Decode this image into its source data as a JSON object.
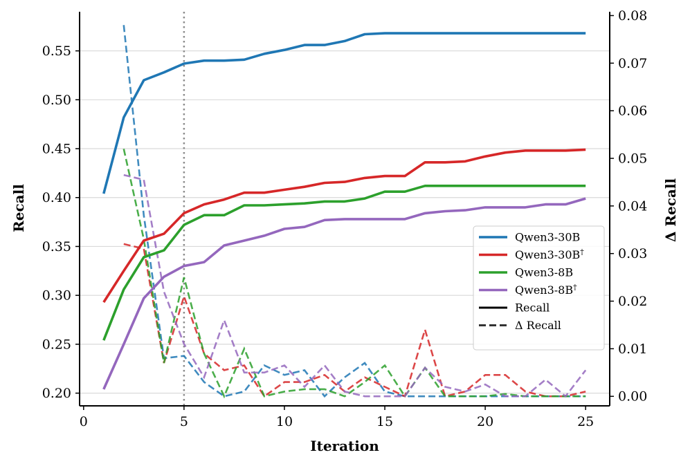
{
  "chart_data": {
    "type": "line",
    "x": [
      1,
      2,
      3,
      4,
      5,
      6,
      7,
      8,
      9,
      10,
      11,
      12,
      13,
      14,
      15,
      16,
      17,
      18,
      19,
      20,
      21,
      22,
      23,
      24,
      25
    ],
    "xlabel": "Iteration",
    "ylabel": "Recall",
    "y2label": "Δ Recall",
    "xlim": [
      -0.2,
      26.2
    ],
    "ylim": [
      0.187,
      0.59
    ],
    "y2lim": [
      -0.002,
      0.0808
    ],
    "xticks": [
      0,
      5,
      10,
      15,
      20,
      25
    ],
    "yticks": [
      0.2,
      0.25,
      0.3,
      0.35,
      0.4,
      0.45,
      0.5,
      0.55
    ],
    "ytick_labels": [
      "0.20",
      "0.25",
      "0.30",
      "0.35",
      "0.40",
      "0.45",
      "0.50",
      "0.55"
    ],
    "y2ticks": [
      0.0,
      0.01,
      0.02,
      0.03,
      0.04,
      0.05,
      0.06,
      0.07,
      0.08
    ],
    "y2tick_labels": [
      "0.00",
      "0.01",
      "0.02",
      "0.03",
      "0.04",
      "0.05",
      "0.06",
      "0.07",
      "0.08"
    ],
    "vline_x": 5,
    "grid": "horizontal",
    "legend_position": "center-right",
    "series": [
      {
        "name": "Qwen3-30B",
        "color": "#1f77b4",
        "recall": [
          0.404,
          0.482,
          0.52,
          0.528,
          0.537,
          0.54,
          0.54,
          0.541,
          0.547,
          0.551,
          0.556,
          0.556,
          0.56,
          0.567,
          0.568,
          0.568,
          0.568,
          0.568,
          0.568,
          0.568,
          0.568,
          0.568,
          0.568,
          0.568,
          0.568
        ],
        "delta": [
          null,
          0.078,
          0.038,
          0.008,
          0.0085,
          0.003,
          0.0,
          0.001,
          0.0065,
          0.0045,
          0.0055,
          0.0,
          0.004,
          0.007,
          0.001,
          0.0,
          0.0,
          0.0,
          0.0,
          0.0,
          0.0,
          0.0,
          0.0,
          0.0,
          0.0
        ]
      },
      {
        "name": "Qwen3-30B",
        "sup": "†",
        "color": "#d62728",
        "recall": [
          0.293,
          0.325,
          0.356,
          0.363,
          0.384,
          0.393,
          0.398,
          0.405,
          0.405,
          0.408,
          0.411,
          0.415,
          0.416,
          0.42,
          0.422,
          0.422,
          0.436,
          0.436,
          0.437,
          0.442,
          0.446,
          0.448,
          0.448,
          0.448,
          0.449
        ],
        "delta": [
          null,
          0.032,
          0.031,
          0.007,
          0.021,
          0.009,
          0.0055,
          0.0065,
          0.0,
          0.003,
          0.003,
          0.0045,
          0.001,
          0.004,
          0.002,
          0.0,
          0.014,
          0.0,
          0.001,
          0.0045,
          0.0045,
          0.001,
          0.0,
          0.0,
          0.001
        ]
      },
      {
        "name": "Qwen3-8B",
        "color": "#2ca02c",
        "recall": [
          0.254,
          0.306,
          0.339,
          0.346,
          0.372,
          0.382,
          0.382,
          0.392,
          0.392,
          0.393,
          0.394,
          0.396,
          0.396,
          0.399,
          0.406,
          0.406,
          0.412,
          0.412,
          0.412,
          0.412,
          0.412,
          0.412,
          0.412,
          0.412,
          0.412
        ],
        "delta": [
          null,
          0.052,
          0.033,
          0.007,
          0.025,
          0.009,
          0.0,
          0.01,
          0.0,
          0.001,
          0.0015,
          0.0015,
          0.0,
          0.003,
          0.0065,
          0.0,
          0.006,
          0.0,
          0.0,
          0.0,
          0.0005,
          0.0,
          0.0,
          0.0,
          0.0
        ]
      },
      {
        "name": "Qwen3-8B",
        "sup": "†",
        "color": "#9467bd",
        "recall": [
          0.204,
          0.25,
          0.297,
          0.319,
          0.33,
          0.334,
          0.351,
          0.356,
          0.361,
          0.368,
          0.37,
          0.377,
          0.378,
          0.378,
          0.378,
          0.378,
          0.384,
          0.386,
          0.387,
          0.39,
          0.39,
          0.39,
          0.393,
          0.393,
          0.399
        ],
        "delta": [
          null,
          0.0465,
          0.0455,
          0.022,
          0.011,
          0.004,
          0.016,
          0.005,
          0.005,
          0.0065,
          0.002,
          0.0065,
          0.001,
          0.0,
          0.0,
          0.0,
          0.006,
          0.002,
          0.001,
          0.0025,
          0.0,
          0.0,
          0.0035,
          0.0,
          0.0055
        ]
      }
    ],
    "legend_style_entries": [
      {
        "label": "Recall",
        "style": "solid"
      },
      {
        "label": "Δ Recall",
        "style": "dashed"
      }
    ]
  }
}
